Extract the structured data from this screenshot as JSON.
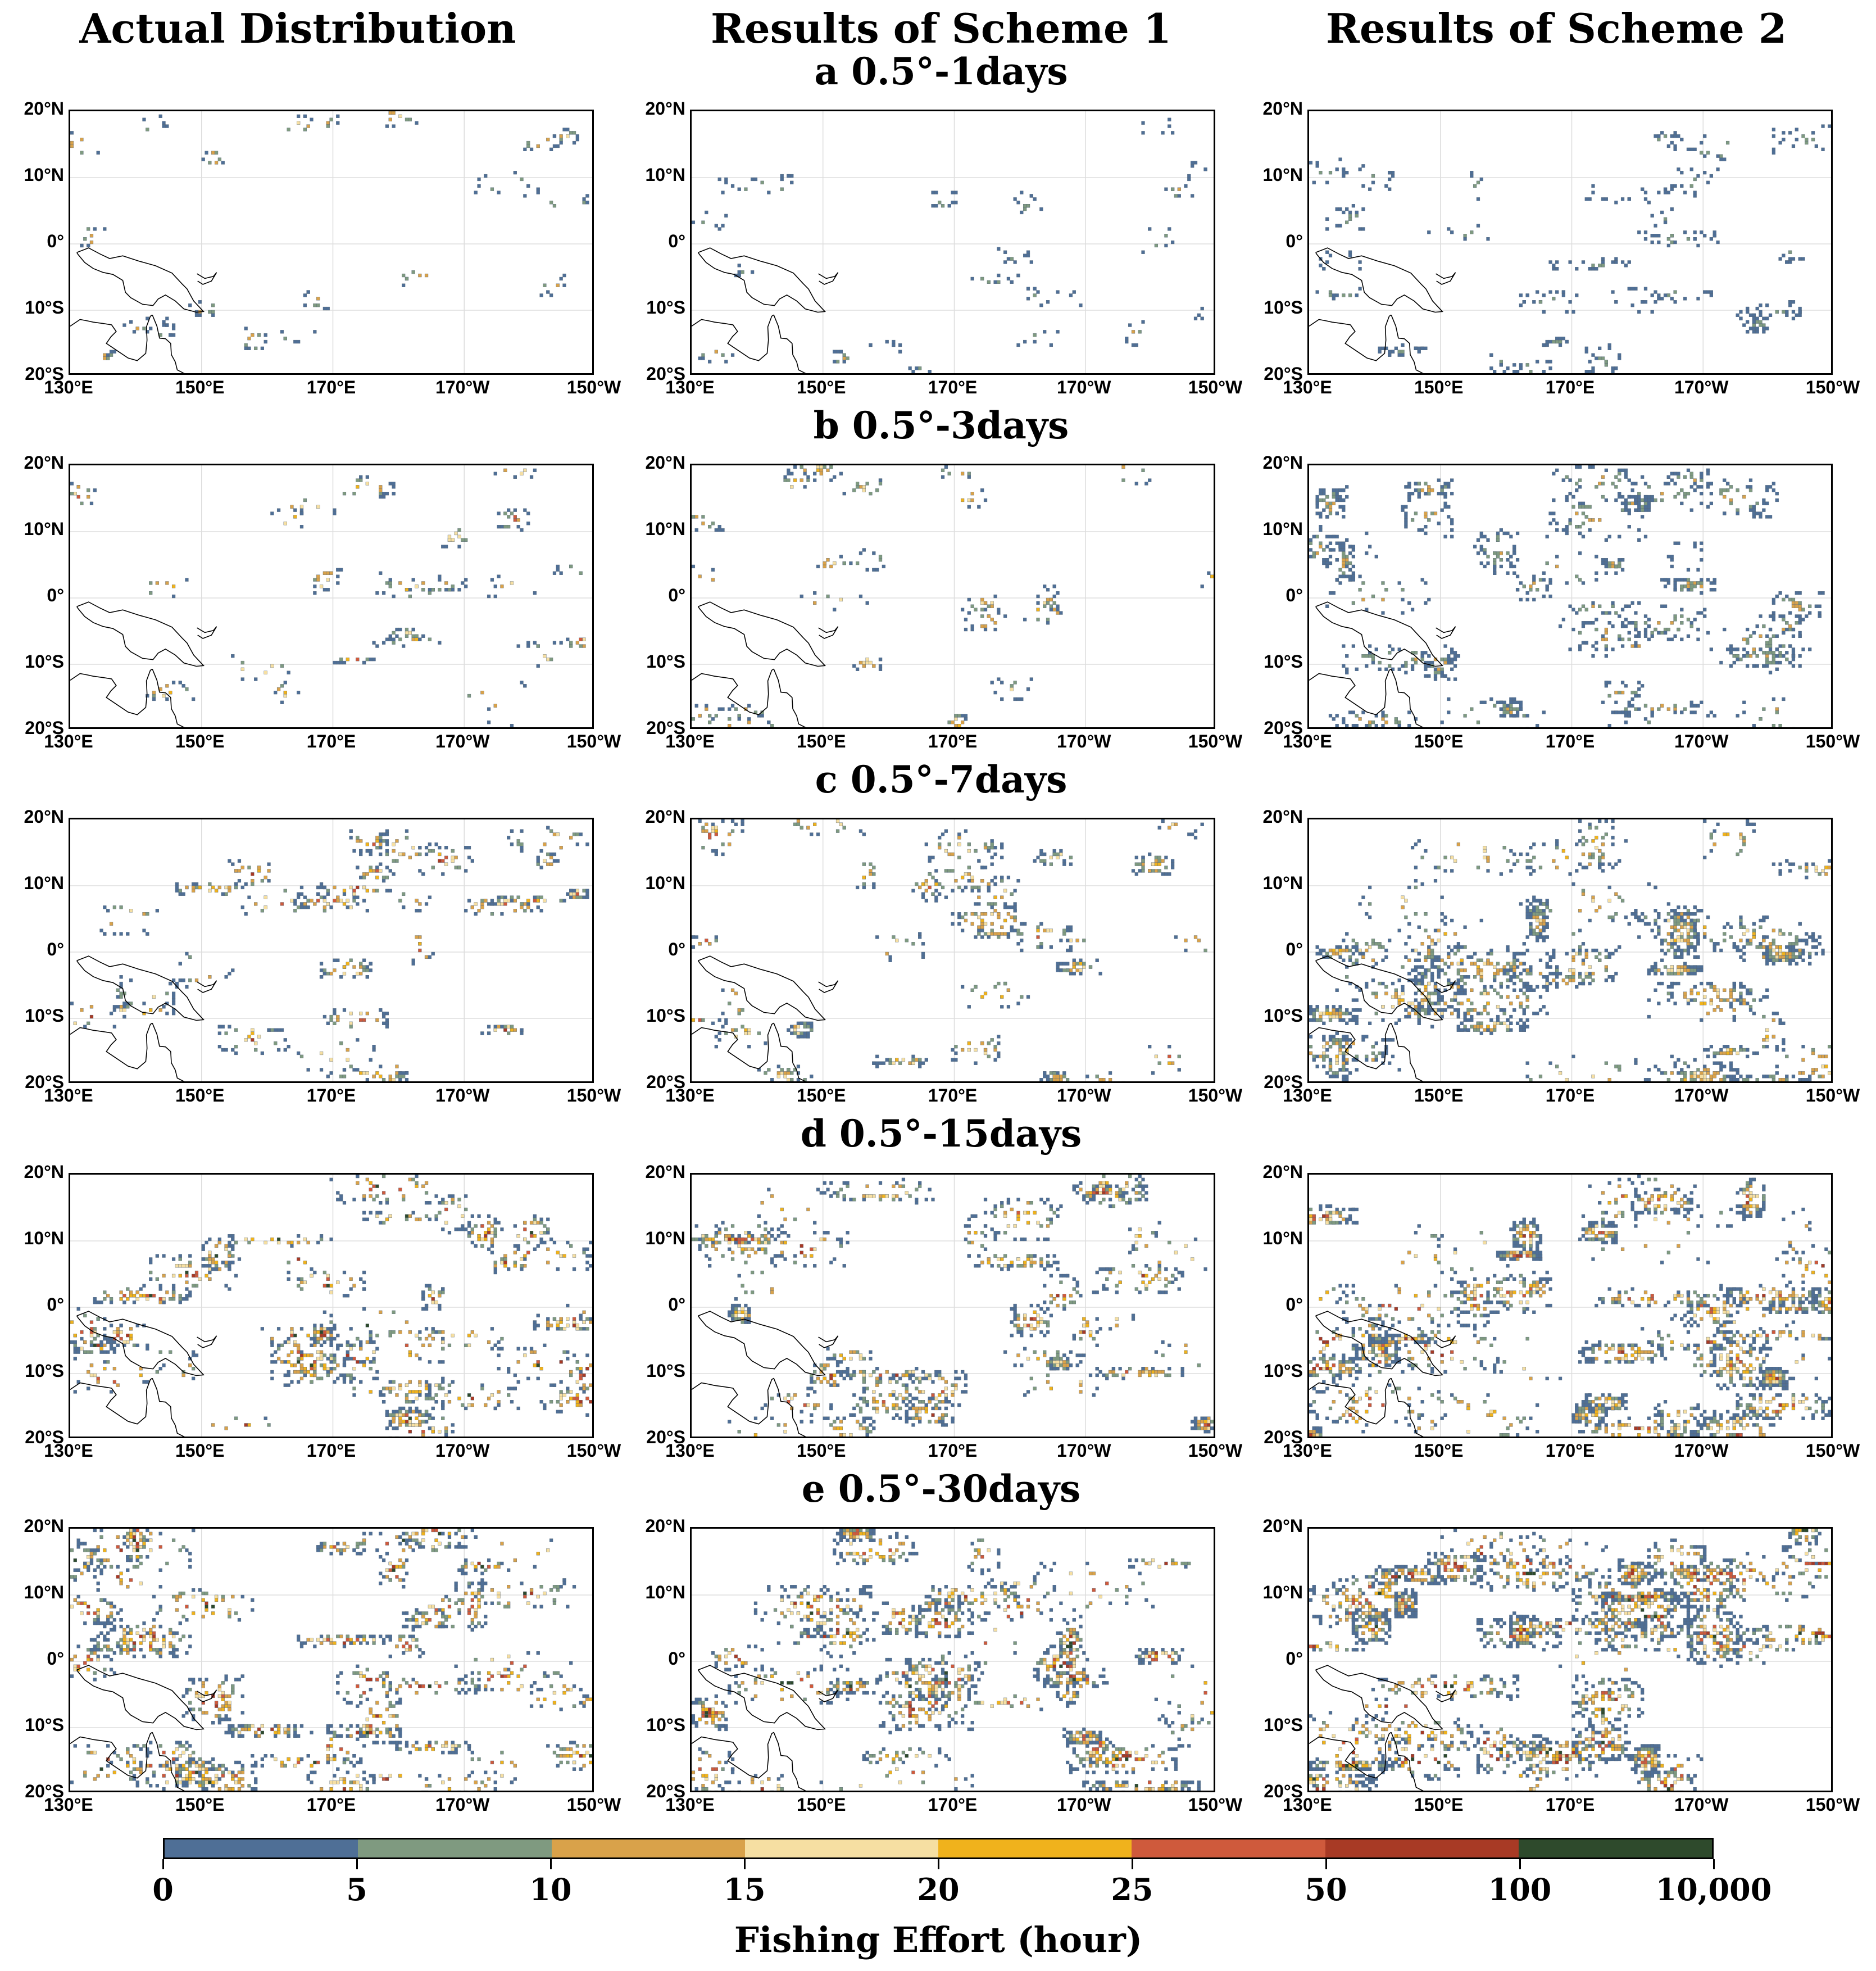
{
  "chart_data": {
    "type": "heatmap",
    "column_titles": [
      "Actual Distribution",
      "Results of Scheme 1",
      "Results of Scheme 2"
    ],
    "row_titles": [
      "a 0.5°-1days",
      "b 0.5°-3days",
      "c 0.5°-7days",
      "d 0.5°-15days",
      "e 0.5°-30days"
    ],
    "lat_ticks": [
      "20°N",
      "10°N",
      "0°",
      "10°S",
      "20°S"
    ],
    "lon_ticks": [
      "130°E",
      "150°E",
      "170°E",
      "170°W",
      "150°W"
    ],
    "lat_range": [
      -20,
      20
    ],
    "lon_range": [
      130,
      210
    ],
    "colorbar": {
      "title": "Fishing Effort (hour)",
      "bounds": [
        "0",
        "5",
        "10",
        "15",
        "20",
        "25",
        "50",
        "100",
        "10,000"
      ],
      "colors": [
        "#4f6f96",
        "#7f9a80",
        "#d9a24a",
        "#f6dfa2",
        "#f0b21c",
        "#cf5a3c",
        "#a83a25",
        "#2e4a2c"
      ]
    },
    "coast_color": "#000000",
    "panel_intensity": [
      [
        0.05,
        0.05,
        0.2
      ],
      [
        0.12,
        0.12,
        0.45
      ],
      [
        0.25,
        0.28,
        0.65
      ],
      [
        0.45,
        0.45,
        0.75
      ],
      [
        0.6,
        0.6,
        0.8
      ]
    ],
    "panel_max_level": [
      [
        3,
        2,
        1
      ],
      [
        5,
        4,
        2
      ],
      [
        6,
        5,
        4
      ],
      [
        7,
        6,
        6
      ],
      [
        7,
        7,
        7
      ]
    ]
  }
}
